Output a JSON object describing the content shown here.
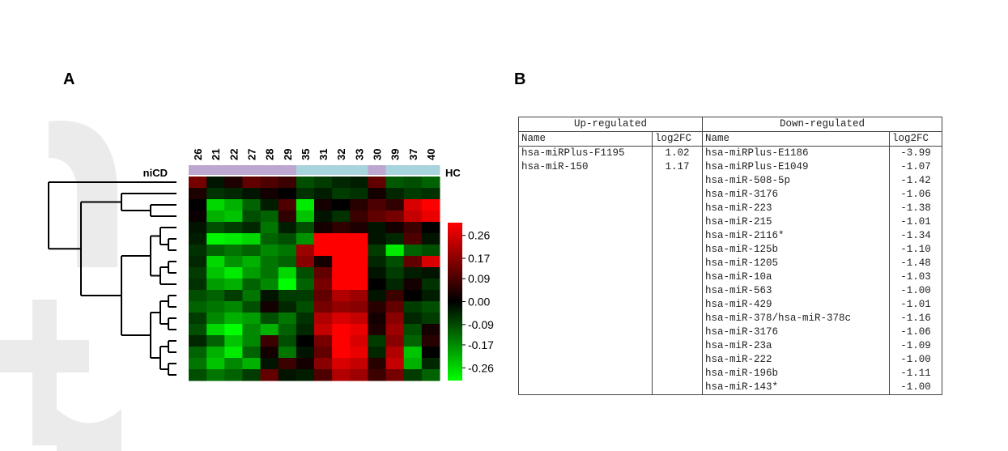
{
  "panel_labels": [
    "A",
    "B"
  ],
  "chart_data": {
    "type": "heatmap",
    "x": [
      "26",
      "21",
      "22",
      "27",
      "28",
      "29",
      "35",
      "31",
      "32",
      "33",
      "30",
      "39",
      "37",
      "40"
    ],
    "column_colors": [
      "#bda7d0",
      "#bda7d0",
      "#bda7d0",
      "#bda7d0",
      "#bda7d0",
      "#bda7d0",
      "#a8d4de",
      "#a8d4de",
      "#a8d4de",
      "#a8d4de",
      "#bda7d0",
      "#a8d4de",
      "#a8d4de",
      "#a8d4de"
    ],
    "group_left": "niCD",
    "group_right": "HC",
    "values": [
      [
        0.12,
        -0.02,
        0.03,
        0.1,
        0.08,
        0.06,
        -0.08,
        -0.06,
        -0.04,
        -0.03,
        0.1,
        -0.09,
        -0.08,
        -0.1
      ],
      [
        0.03,
        -0.05,
        -0.04,
        -0.02,
        0.02,
        0.0,
        -0.05,
        -0.03,
        -0.06,
        -0.05,
        0.02,
        -0.04,
        -0.06,
        -0.05
      ],
      [
        0.0,
        -0.22,
        -0.18,
        -0.1,
        -0.03,
        0.08,
        -0.24,
        0.02,
        0.0,
        0.04,
        0.08,
        0.05,
        0.22,
        0.26
      ],
      [
        0.01,
        -0.18,
        -0.2,
        -0.08,
        -0.1,
        0.05,
        -0.2,
        -0.02,
        -0.05,
        0.06,
        0.1,
        0.12,
        0.2,
        0.24
      ],
      [
        -0.02,
        -0.08,
        -0.06,
        -0.04,
        -0.12,
        -0.03,
        -0.08,
        0.02,
        0.05,
        0.03,
        -0.02,
        0.02,
        0.06,
        0.0
      ],
      [
        -0.03,
        -0.25,
        -0.24,
        -0.22,
        -0.1,
        -0.08,
        -0.15,
        0.26,
        0.26,
        0.26,
        -0.02,
        -0.04,
        0.08,
        -0.02
      ],
      [
        -0.05,
        -0.1,
        -0.12,
        -0.1,
        -0.14,
        -0.12,
        0.16,
        0.26,
        0.26,
        0.26,
        -0.06,
        -0.24,
        -0.1,
        -0.08
      ],
      [
        -0.04,
        -0.22,
        -0.15,
        -0.18,
        -0.12,
        -0.1,
        0.14,
        0.02,
        0.26,
        0.26,
        -0.04,
        -0.08,
        0.1,
        0.22
      ],
      [
        -0.06,
        -0.2,
        -0.24,
        -0.16,
        -0.12,
        -0.22,
        -0.08,
        0.1,
        0.26,
        0.26,
        -0.02,
        -0.06,
        -0.03,
        -0.02
      ],
      [
        -0.05,
        -0.16,
        -0.18,
        -0.1,
        -0.14,
        -0.26,
        -0.1,
        0.12,
        0.26,
        0.26,
        0.0,
        -0.04,
        0.02,
        -0.05
      ],
      [
        -0.08,
        -0.1,
        -0.06,
        -0.12,
        -0.02,
        -0.06,
        -0.06,
        0.1,
        0.18,
        0.16,
        -0.02,
        0.06,
        0.0,
        -0.03
      ],
      [
        -0.1,
        -0.12,
        -0.14,
        -0.08,
        0.02,
        -0.04,
        -0.08,
        0.12,
        0.15,
        0.14,
        0.04,
        0.1,
        -0.06,
        -0.08
      ],
      [
        -0.06,
        -0.14,
        -0.18,
        -0.16,
        -0.08,
        -0.12,
        -0.05,
        0.18,
        0.22,
        0.2,
        0.02,
        0.14,
        -0.04,
        -0.06
      ],
      [
        -0.08,
        -0.22,
        -0.26,
        -0.14,
        -0.18,
        -0.1,
        -0.04,
        0.2,
        0.26,
        0.24,
        0.03,
        0.16,
        -0.08,
        0.02
      ],
      [
        -0.04,
        -0.1,
        -0.2,
        -0.14,
        0.06,
        -0.08,
        0.0,
        0.12,
        0.26,
        0.22,
        -0.06,
        0.14,
        -0.1,
        0.04
      ],
      [
        -0.1,
        -0.18,
        -0.24,
        -0.1,
        0.02,
        -0.12,
        -0.02,
        0.1,
        0.26,
        0.24,
        -0.04,
        0.18,
        -0.2,
        0.0
      ],
      [
        -0.12,
        -0.2,
        -0.14,
        -0.18,
        -0.02,
        0.06,
        0.02,
        0.14,
        0.22,
        0.2,
        0.04,
        0.2,
        -0.18,
        -0.04
      ],
      [
        -0.08,
        -0.12,
        -0.1,
        -0.06,
        0.1,
        -0.02,
        -0.03,
        0.08,
        0.18,
        0.16,
        0.06,
        0.12,
        -0.06,
        -0.1
      ]
    ],
    "colors": [
      "#00ff00",
      "#000000",
      "#ff0000"
    ],
    "clim": [
      -0.31,
      0.31
    ],
    "colorbar_ticks": [
      0.26,
      0.17,
      0.09,
      {
        "value": 0,
        "label": "0.00"
      },
      -0.09,
      -0.17,
      -0.26
    ]
  },
  "table": {
    "up_header": "Up-regulated",
    "down_header": "Down-regulated",
    "columns": [
      "Name",
      "log2FC",
      "Name",
      "log2FC"
    ],
    "up": [
      [
        "hsa-miRPlus-F1195",
        "1.02"
      ],
      [
        "hsa-miR-150",
        "1.17"
      ]
    ],
    "down": [
      [
        "hsa-miRPlus-E1186",
        "-3.99"
      ],
      [
        "hsa-miRPlus-E1049",
        "-1.07"
      ],
      [
        "hsa-miR-508-5p",
        "-1.42"
      ],
      [
        "hsa-miR-3176",
        "-1.06"
      ],
      [
        "hsa-miR-223",
        "-1.38"
      ],
      [
        "hsa-miR-215",
        "-1.01"
      ],
      [
        "hsa-miR-2116*",
        "-1.34"
      ],
      [
        "hsa-miR-125b",
        "-1.10"
      ],
      [
        "hsa-miR-1205",
        "-1.48"
      ],
      [
        "hsa-miR-10a",
        "-1.03"
      ],
      [
        "hsa-miR-563",
        "-1.00"
      ],
      [
        "hsa-miR-429",
        "-1.01"
      ],
      [
        "hsa-miR-378/hsa-miR-378c",
        "-1.16"
      ],
      [
        "hsa-miR-3176",
        "-1.06"
      ],
      [
        "hsa-miR-23a",
        "-1.09"
      ],
      [
        "hsa-miR-222",
        "-1.00"
      ],
      [
        "hsa-miR-196b",
        "-1.11"
      ],
      [
        "hsa-miR-143*",
        "-1.00"
      ]
    ]
  }
}
